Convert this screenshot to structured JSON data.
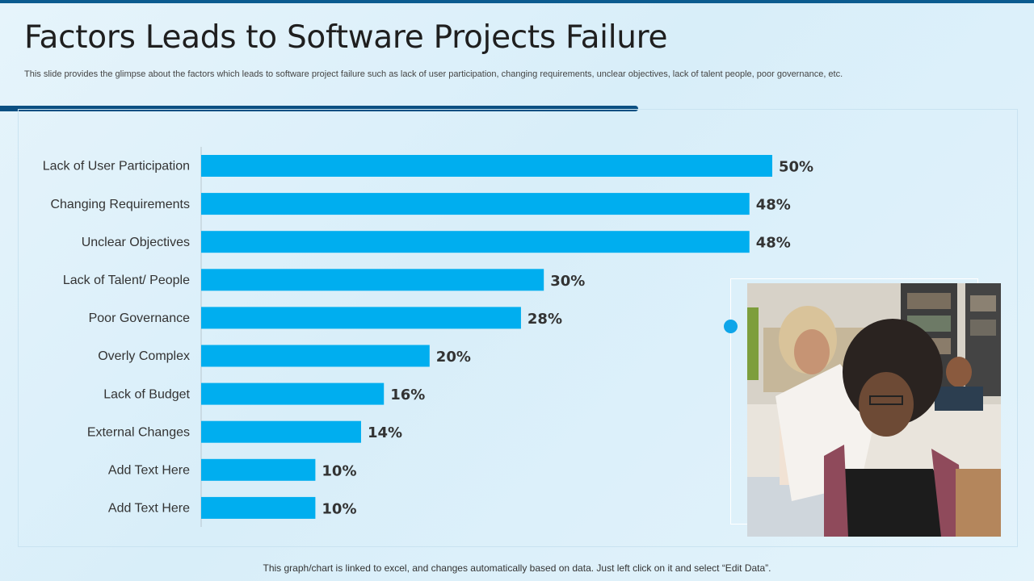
{
  "slide": {
    "title": "Factors Leads to Software Projects Failure",
    "subtitle": "This slide provides the glimpse about the factors which leads to software project failure such as lack of user participation, changing requirements, unclear objectives, lack of talent people, poor governance, etc.",
    "footer": "This graph/chart is linked to excel,  and changes automatically based on data. Just left click on it and select “Edit Data”."
  },
  "colors": {
    "bar": "#00aeef",
    "accent": "#0b4f82",
    "text": "#333333"
  },
  "chart_data": {
    "type": "bar",
    "orientation": "horizontal",
    "title": "",
    "xlabel": "",
    "ylabel": "",
    "xlim": [
      0,
      50
    ],
    "grid": false,
    "categories": [
      "Lack of User Participation",
      "Changing Requirements",
      "Unclear Objectives",
      "Lack of Talent/ People",
      "Poor Governance",
      "Overly Complex",
      "Lack of Budget",
      "External Changes",
      "Add Text Here",
      "Add Text Here"
    ],
    "values": [
      50,
      48,
      48,
      30,
      28,
      20,
      16,
      14,
      10,
      10
    ],
    "value_labels": [
      "50%",
      "48%",
      "48%",
      "30%",
      "28%",
      "20%",
      "16%",
      "14%",
      "10%",
      "10%"
    ]
  }
}
